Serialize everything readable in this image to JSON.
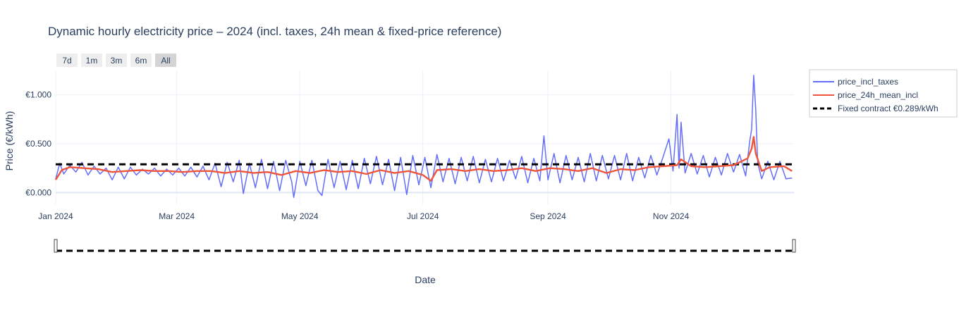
{
  "chart_data": {
    "type": "line",
    "title": "Dynamic hourly electricity price – 2024 (incl. taxes, 24h mean & fixed-price reference)",
    "xlabel": "Date",
    "ylabel": "Price (€/kWh)",
    "x_range": [
      "2024-01-01",
      "2024-12-31"
    ],
    "ylim": [
      -0.12,
      1.25
    ],
    "x_ticks": [
      {
        "date": "2024-01-01",
        "label": "Jan 2024"
      },
      {
        "date": "2024-03-01",
        "label": "Mar 2024"
      },
      {
        "date": "2024-05-01",
        "label": "May 2024"
      },
      {
        "date": "2024-07-01",
        "label": "Jul 2024"
      },
      {
        "date": "2024-09-01",
        "label": "Sep 2024"
      },
      {
        "date": "2024-11-01",
        "label": "Nov 2024"
      }
    ],
    "y_ticks": [
      {
        "value": 0,
        "label": "€0.000"
      },
      {
        "value": 0.5,
        "label": "€0.500"
      },
      {
        "value": 1.0,
        "label": "€1.000"
      }
    ],
    "grid": true,
    "legend_position": "top-right",
    "range_selector": [
      {
        "label": "7d",
        "active": false
      },
      {
        "label": "1m",
        "active": false
      },
      {
        "label": "3m",
        "active": false
      },
      {
        "label": "6m",
        "active": false
      },
      {
        "label": "All",
        "active": true
      }
    ],
    "range_slider": true,
    "series": [
      {
        "name": "price_incl_taxes",
        "color": "#636efa",
        "style": "solid",
        "points": [
          [
            "2024-01-01",
            0.14
          ],
          [
            "2024-01-03",
            0.3
          ],
          [
            "2024-01-05",
            0.19
          ],
          [
            "2024-01-08",
            0.28
          ],
          [
            "2024-01-11",
            0.21
          ],
          [
            "2024-01-14",
            0.31
          ],
          [
            "2024-01-17",
            0.18
          ],
          [
            "2024-01-20",
            0.27
          ],
          [
            "2024-01-23",
            0.19
          ],
          [
            "2024-01-26",
            0.25
          ],
          [
            "2024-01-29",
            0.13
          ],
          [
            "2024-02-01",
            0.26
          ],
          [
            "2024-02-04",
            0.14
          ],
          [
            "2024-02-07",
            0.26
          ],
          [
            "2024-02-10",
            0.18
          ],
          [
            "2024-02-13",
            0.24
          ],
          [
            "2024-02-16",
            0.19
          ],
          [
            "2024-02-19",
            0.25
          ],
          [
            "2024-02-22",
            0.17
          ],
          [
            "2024-02-25",
            0.24
          ],
          [
            "2024-02-28",
            0.18
          ],
          [
            "2024-03-02",
            0.25
          ],
          [
            "2024-03-05",
            0.17
          ],
          [
            "2024-03-08",
            0.26
          ],
          [
            "2024-03-11",
            0.16
          ],
          [
            "2024-03-14",
            0.27
          ],
          [
            "2024-03-17",
            0.13
          ],
          [
            "2024-03-20",
            0.3
          ],
          [
            "2024-03-23",
            0.06
          ],
          [
            "2024-03-26",
            0.31
          ],
          [
            "2024-03-29",
            0.11
          ],
          [
            "2024-04-01",
            0.33
          ],
          [
            "2024-04-03",
            -0.01
          ],
          [
            "2024-04-06",
            0.3
          ],
          [
            "2024-04-09",
            0.05
          ],
          [
            "2024-04-12",
            0.34
          ],
          [
            "2024-04-15",
            0.04
          ],
          [
            "2024-04-18",
            0.32
          ],
          [
            "2024-04-21",
            0.02
          ],
          [
            "2024-04-24",
            0.33
          ],
          [
            "2024-04-27",
            0.11
          ],
          [
            "2024-04-28",
            -0.05
          ],
          [
            "2024-05-01",
            0.32
          ],
          [
            "2024-05-04",
            0.07
          ],
          [
            "2024-05-07",
            0.33
          ],
          [
            "2024-05-10",
            0.02
          ],
          [
            "2024-05-12",
            -0.03
          ],
          [
            "2024-05-15",
            0.34
          ],
          [
            "2024-05-18",
            0.05
          ],
          [
            "2024-05-21",
            0.32
          ],
          [
            "2024-05-24",
            0.03
          ],
          [
            "2024-05-27",
            0.33
          ],
          [
            "2024-05-30",
            0.04
          ],
          [
            "2024-06-02",
            0.35
          ],
          [
            "2024-06-05",
            0.09
          ],
          [
            "2024-06-08",
            0.37
          ],
          [
            "2024-06-11",
            0.08
          ],
          [
            "2024-06-14",
            0.34
          ],
          [
            "2024-06-17",
            0.02
          ],
          [
            "2024-06-20",
            0.36
          ],
          [
            "2024-06-23",
            -0.02
          ],
          [
            "2024-06-26",
            0.38
          ],
          [
            "2024-06-29",
            0.08
          ],
          [
            "2024-07-02",
            0.36
          ],
          [
            "2024-07-05",
            0.05
          ],
          [
            "2024-07-08",
            0.39
          ],
          [
            "2024-07-11",
            0.11
          ],
          [
            "2024-07-14",
            0.35
          ],
          [
            "2024-07-17",
            0.09
          ],
          [
            "2024-07-20",
            0.36
          ],
          [
            "2024-07-23",
            0.12
          ],
          [
            "2024-07-26",
            0.37
          ],
          [
            "2024-07-29",
            0.1
          ],
          [
            "2024-08-01",
            0.34
          ],
          [
            "2024-08-04",
            0.11
          ],
          [
            "2024-08-07",
            0.35
          ],
          [
            "2024-08-10",
            0.12
          ],
          [
            "2024-08-13",
            0.33
          ],
          [
            "2024-08-16",
            0.14
          ],
          [
            "2024-08-19",
            0.37
          ],
          [
            "2024-08-22",
            0.1
          ],
          [
            "2024-08-25",
            0.35
          ],
          [
            "2024-08-28",
            0.12
          ],
          [
            "2024-08-30",
            0.58
          ],
          [
            "2024-09-01",
            0.13
          ],
          [
            "2024-09-04",
            0.4
          ],
          [
            "2024-09-07",
            0.1
          ],
          [
            "2024-09-10",
            0.38
          ],
          [
            "2024-09-13",
            0.13
          ],
          [
            "2024-09-16",
            0.36
          ],
          [
            "2024-09-19",
            0.11
          ],
          [
            "2024-09-22",
            0.4
          ],
          [
            "2024-09-25",
            0.12
          ],
          [
            "2024-09-28",
            0.38
          ],
          [
            "2024-10-01",
            0.14
          ],
          [
            "2024-10-04",
            0.38
          ],
          [
            "2024-10-07",
            0.13
          ],
          [
            "2024-10-10",
            0.4
          ],
          [
            "2024-10-13",
            0.12
          ],
          [
            "2024-10-16",
            0.36
          ],
          [
            "2024-10-19",
            0.15
          ],
          [
            "2024-10-22",
            0.38
          ],
          [
            "2024-10-25",
            0.18
          ],
          [
            "2024-10-28",
            0.36
          ],
          [
            "2024-10-31",
            0.55
          ],
          [
            "2024-11-02",
            0.22
          ],
          [
            "2024-11-04",
            0.8
          ],
          [
            "2024-11-05",
            0.25
          ],
          [
            "2024-11-06",
            0.72
          ],
          [
            "2024-11-08",
            0.2
          ],
          [
            "2024-11-11",
            0.4
          ],
          [
            "2024-11-14",
            0.19
          ],
          [
            "2024-11-17",
            0.38
          ],
          [
            "2024-11-20",
            0.16
          ],
          [
            "2024-11-23",
            0.36
          ],
          [
            "2024-11-26",
            0.18
          ],
          [
            "2024-11-29",
            0.4
          ],
          [
            "2024-12-02",
            0.21
          ],
          [
            "2024-12-05",
            0.39
          ],
          [
            "2024-12-08",
            0.17
          ],
          [
            "2024-12-10",
            0.52
          ],
          [
            "2024-12-11",
            0.65
          ],
          [
            "2024-12-12",
            1.2
          ],
          [
            "2024-12-13",
            0.85
          ],
          [
            "2024-12-14",
            0.3
          ],
          [
            "2024-12-16",
            0.14
          ],
          [
            "2024-12-19",
            0.32
          ],
          [
            "2024-12-22",
            0.13
          ],
          [
            "2024-12-25",
            0.32
          ],
          [
            "2024-12-28",
            0.14
          ],
          [
            "2024-12-31",
            0.15
          ]
        ]
      },
      {
        "name": "price_24h_mean_incl",
        "color": "#ef553b",
        "style": "solid",
        "points": [
          [
            "2024-01-01",
            0.13
          ],
          [
            "2024-01-04",
            0.23
          ],
          [
            "2024-01-08",
            0.26
          ],
          [
            "2024-01-15",
            0.25
          ],
          [
            "2024-01-22",
            0.24
          ],
          [
            "2024-01-29",
            0.21
          ],
          [
            "2024-02-05",
            0.22
          ],
          [
            "2024-02-12",
            0.23
          ],
          [
            "2024-02-19",
            0.22
          ],
          [
            "2024-02-26",
            0.22
          ],
          [
            "2024-03-04",
            0.21
          ],
          [
            "2024-03-11",
            0.22
          ],
          [
            "2024-03-18",
            0.22
          ],
          [
            "2024-03-25",
            0.2
          ],
          [
            "2024-04-01",
            0.22
          ],
          [
            "2024-04-08",
            0.2
          ],
          [
            "2024-04-15",
            0.21
          ],
          [
            "2024-04-22",
            0.18
          ],
          [
            "2024-04-29",
            0.22
          ],
          [
            "2024-05-06",
            0.2
          ],
          [
            "2024-05-13",
            0.23
          ],
          [
            "2024-05-20",
            0.21
          ],
          [
            "2024-05-27",
            0.22
          ],
          [
            "2024-06-03",
            0.19
          ],
          [
            "2024-06-10",
            0.23
          ],
          [
            "2024-06-17",
            0.2
          ],
          [
            "2024-06-24",
            0.22
          ],
          [
            "2024-07-01",
            0.18
          ],
          [
            "2024-07-05",
            0.12
          ],
          [
            "2024-07-08",
            0.23
          ],
          [
            "2024-07-15",
            0.24
          ],
          [
            "2024-07-22",
            0.22
          ],
          [
            "2024-07-29",
            0.24
          ],
          [
            "2024-08-05",
            0.22
          ],
          [
            "2024-08-12",
            0.23
          ],
          [
            "2024-08-19",
            0.25
          ],
          [
            "2024-08-26",
            0.22
          ],
          [
            "2024-09-02",
            0.25
          ],
          [
            "2024-09-09",
            0.24
          ],
          [
            "2024-09-16",
            0.22
          ],
          [
            "2024-09-23",
            0.25
          ],
          [
            "2024-09-30",
            0.2
          ],
          [
            "2024-10-07",
            0.24
          ],
          [
            "2024-10-14",
            0.23
          ],
          [
            "2024-10-21",
            0.26
          ],
          [
            "2024-10-28",
            0.27
          ],
          [
            "2024-11-04",
            0.28
          ],
          [
            "2024-11-06",
            0.34
          ],
          [
            "2024-11-11",
            0.27
          ],
          [
            "2024-11-18",
            0.26
          ],
          [
            "2024-11-25",
            0.27
          ],
          [
            "2024-12-02",
            0.28
          ],
          [
            "2024-12-09",
            0.35
          ],
          [
            "2024-12-11",
            0.45
          ],
          [
            "2024-12-12",
            0.57
          ],
          [
            "2024-12-13",
            0.4
          ],
          [
            "2024-12-16",
            0.22
          ],
          [
            "2024-12-20",
            0.26
          ],
          [
            "2024-12-27",
            0.27
          ],
          [
            "2024-12-31",
            0.22
          ]
        ]
      },
      {
        "name": "Fixed contract €0.289/kWh",
        "color": "#000000",
        "style": "dash",
        "value": 0.289
      }
    ]
  }
}
